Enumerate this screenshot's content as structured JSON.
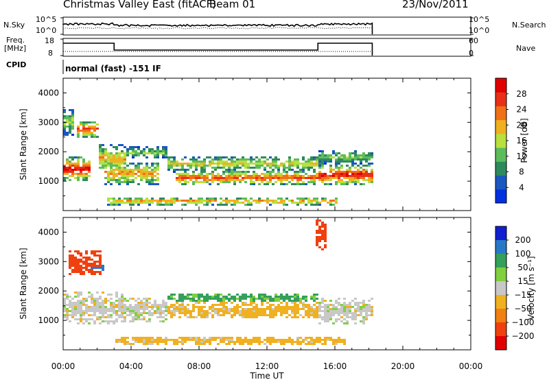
{
  "header": {
    "station": "Christmas Valley East (fitACF)",
    "beam": "Beam 01",
    "date": "23/Nov/2011"
  },
  "strip_labels": {
    "nsky": "N.Sky",
    "nsky_ticks": [
      "10^5",
      "10^0"
    ],
    "nsearch": "N.Search",
    "nsearch_ticks": [
      "10^5",
      "10^0"
    ],
    "freq_line1": "Freq.",
    "freq_line2": "[MHz]",
    "freq_ticks": [
      "18",
      "8"
    ],
    "nave": "Nave",
    "nave_ticks": [
      "60",
      "0"
    ],
    "cpid": "CPID",
    "mode": "normal (fast) -151 IF"
  },
  "colors": {
    "power": [
      "#0030e0",
      "#1a58c0",
      "#2e8a5c",
      "#5cbc5c",
      "#b8e040",
      "#f0b020",
      "#f07018",
      "#e83018",
      "#e00000"
    ],
    "velocity": [
      "#1020d0",
      "#2878c8",
      "#34a05a",
      "#80d040",
      "#c8c8c8",
      "#f0b020",
      "#f08010",
      "#f04010",
      "#e00000"
    ]
  },
  "chart_data": [
    {
      "type": "heatmap",
      "quantity": "Power",
      "ylabel": "Slant Range [km]",
      "ylim": [
        0,
        4500
      ],
      "yticks": [
        1000,
        2000,
        3000,
        4000
      ],
      "xlim": [
        0,
        24
      ],
      "xticks": [
        0,
        4,
        8,
        12,
        16,
        20,
        24
      ],
      "xtick_labels": [
        "00:00",
        "04:00",
        "08:00",
        "12:00",
        "16:00",
        "20:00",
        "00:00"
      ],
      "data_end_hour": 18.2,
      "colorbar": {
        "label": "Power [dB]",
        "min": 0,
        "max": 32,
        "ticks": [
          4,
          8,
          12,
          16,
          20,
          24,
          28
        ]
      },
      "features": [
        {
          "t0": 0.0,
          "t1": 1.6,
          "r0": 1050,
          "r1": 1850,
          "peak": 30
        },
        {
          "t0": 0.0,
          "t1": 0.6,
          "r0": 2600,
          "r1": 3500,
          "peak": 16
        },
        {
          "t0": 0.8,
          "t1": 2.0,
          "r0": 2500,
          "r1": 3100,
          "peak": 26
        },
        {
          "t0": 2.0,
          "t1": 3.6,
          "r0": 1300,
          "r1": 2300,
          "peak": 20
        },
        {
          "t0": 2.4,
          "t1": 5.6,
          "r0": 900,
          "r1": 1700,
          "peak": 22
        },
        {
          "t0": 3.6,
          "t1": 6.0,
          "r0": 1800,
          "r1": 2200,
          "peak": 14
        },
        {
          "t0": 6.0,
          "t1": 15.0,
          "r0": 1350,
          "r1": 1900,
          "peak": 18
        },
        {
          "t0": 6.5,
          "t1": 15.2,
          "r0": 900,
          "r1": 1400,
          "peak": 26
        },
        {
          "t0": 15.0,
          "t1": 18.2,
          "r0": 900,
          "r1": 1600,
          "peak": 30
        },
        {
          "t0": 15.0,
          "t1": 18.2,
          "r0": 1600,
          "r1": 2100,
          "peak": 14
        },
        {
          "t0": 2.5,
          "t1": 16.0,
          "r0": 200,
          "r1": 500,
          "peak": 22
        }
      ]
    },
    {
      "type": "heatmap",
      "quantity": "Velocity",
      "ylabel": "Slant Range [km]",
      "ylim": [
        0,
        4500
      ],
      "yticks": [
        1000,
        2000,
        3000,
        4000
      ],
      "xlim": [
        0,
        24
      ],
      "xticks": [
        0,
        4,
        8,
        12,
        16,
        20,
        24
      ],
      "xtick_labels": [
        "00:00",
        "04:00",
        "08:00",
        "12:00",
        "16:00",
        "20:00",
        "00:00"
      ],
      "xlabel": "Time UT",
      "data_end_hour": 18.2,
      "colorbar": {
        "label": "Velocity [m s⁻¹]",
        "bins": [
          -250,
          -200,
          -100,
          -50,
          -15,
          15,
          50,
          100,
          200,
          250
        ],
        "tick_values": [
          200,
          100,
          50,
          15,
          -15,
          -50,
          -100,
          -200
        ],
        "tick_labels": [
          "200",
          "100",
          "50",
          "15",
          "−15",
          "−50",
          "−100",
          "−200"
        ]
      },
      "features": [
        {
          "t0": 0.0,
          "t1": 3.5,
          "r0": 900,
          "r1": 2000,
          "vel": 0
        },
        {
          "t0": 0.3,
          "t1": 2.2,
          "r0": 2600,
          "r1": 3400,
          "vel": -150
        },
        {
          "t0": 1.6,
          "t1": 2.3,
          "r0": 2700,
          "r1": 3000,
          "vel": 180
        },
        {
          "t0": 3.0,
          "t1": 6.0,
          "r0": 1000,
          "r1": 1800,
          "vel": 0
        },
        {
          "t0": 6.0,
          "t1": 15.0,
          "r0": 1650,
          "r1": 1950,
          "vel": 60
        },
        {
          "t0": 6.0,
          "t1": 15.0,
          "r0": 1100,
          "r1": 1650,
          "vel": -30
        },
        {
          "t0": 15.0,
          "t1": 18.2,
          "r0": 900,
          "r1": 1800,
          "vel": 0
        },
        {
          "t0": 14.8,
          "t1": 15.4,
          "r0": 3400,
          "r1": 4500,
          "vel": -180
        },
        {
          "t0": 3.0,
          "t1": 16.5,
          "r0": 200,
          "r1": 500,
          "vel": -30
        }
      ]
    }
  ]
}
